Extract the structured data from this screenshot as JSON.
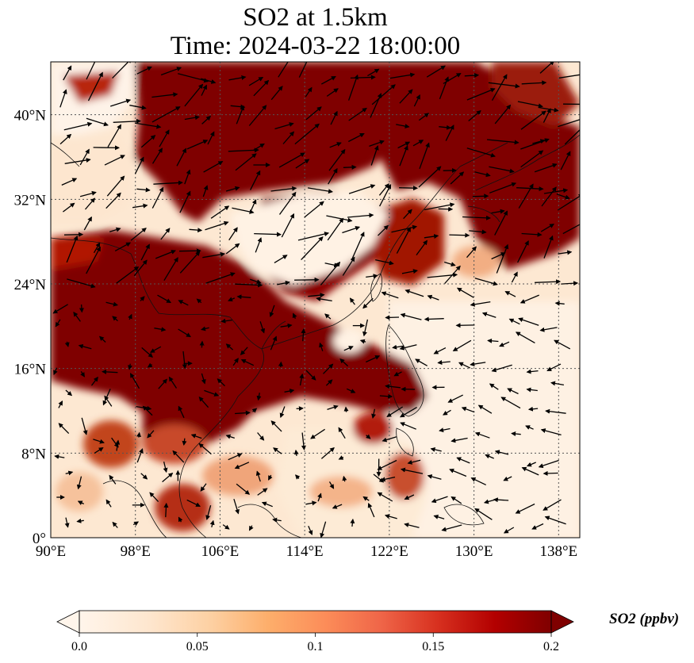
{
  "title": {
    "line1": "SO2 at 1.5km",
    "line2": "Time: 2024-03-22 18:00:00"
  },
  "map": {
    "lon_range": [
      90,
      140
    ],
    "lat_range": [
      0,
      45
    ],
    "lon_ticks": [
      {
        "value": 90,
        "label": "90°E"
      },
      {
        "value": 98,
        "label": "98°E"
      },
      {
        "value": 106,
        "label": "106°E"
      },
      {
        "value": 114,
        "label": "114°E"
      },
      {
        "value": 122,
        "label": "122°E"
      },
      {
        "value": 130,
        "label": "130°E"
      },
      {
        "value": 138,
        "label": "138°E"
      }
    ],
    "lat_ticks": [
      {
        "value": 0,
        "label": "0°"
      },
      {
        "value": 8,
        "label": "8°N"
      },
      {
        "value": 16,
        "label": "16°N"
      },
      {
        "value": 24,
        "label": "24°N"
      },
      {
        "value": 32,
        "label": "32°N"
      },
      {
        "value": 40,
        "label": "40°N"
      }
    ],
    "gridlines": true,
    "wind_vectors": true,
    "colors": {
      "low": "#fff5eb",
      "mid": "#fdae6b",
      "high": "#7f0000"
    }
  },
  "colorbar": {
    "label": "SO2 (ppbv)",
    "range": [
      0.0,
      0.2
    ],
    "extend": "both",
    "ticks": [
      {
        "value": 0.0,
        "label": "0.0"
      },
      {
        "value": 0.05,
        "label": "0.05"
      },
      {
        "value": 0.1,
        "label": "0.1"
      },
      {
        "value": 0.15,
        "label": "0.15"
      },
      {
        "value": 0.2,
        "label": "0.2"
      }
    ],
    "colormap": [
      "#fff5eb",
      "#fee6ce",
      "#fdd0a2",
      "#fdae6b",
      "#fc8d59",
      "#ef6548",
      "#d7301f",
      "#b30000",
      "#7f0000"
    ]
  }
}
